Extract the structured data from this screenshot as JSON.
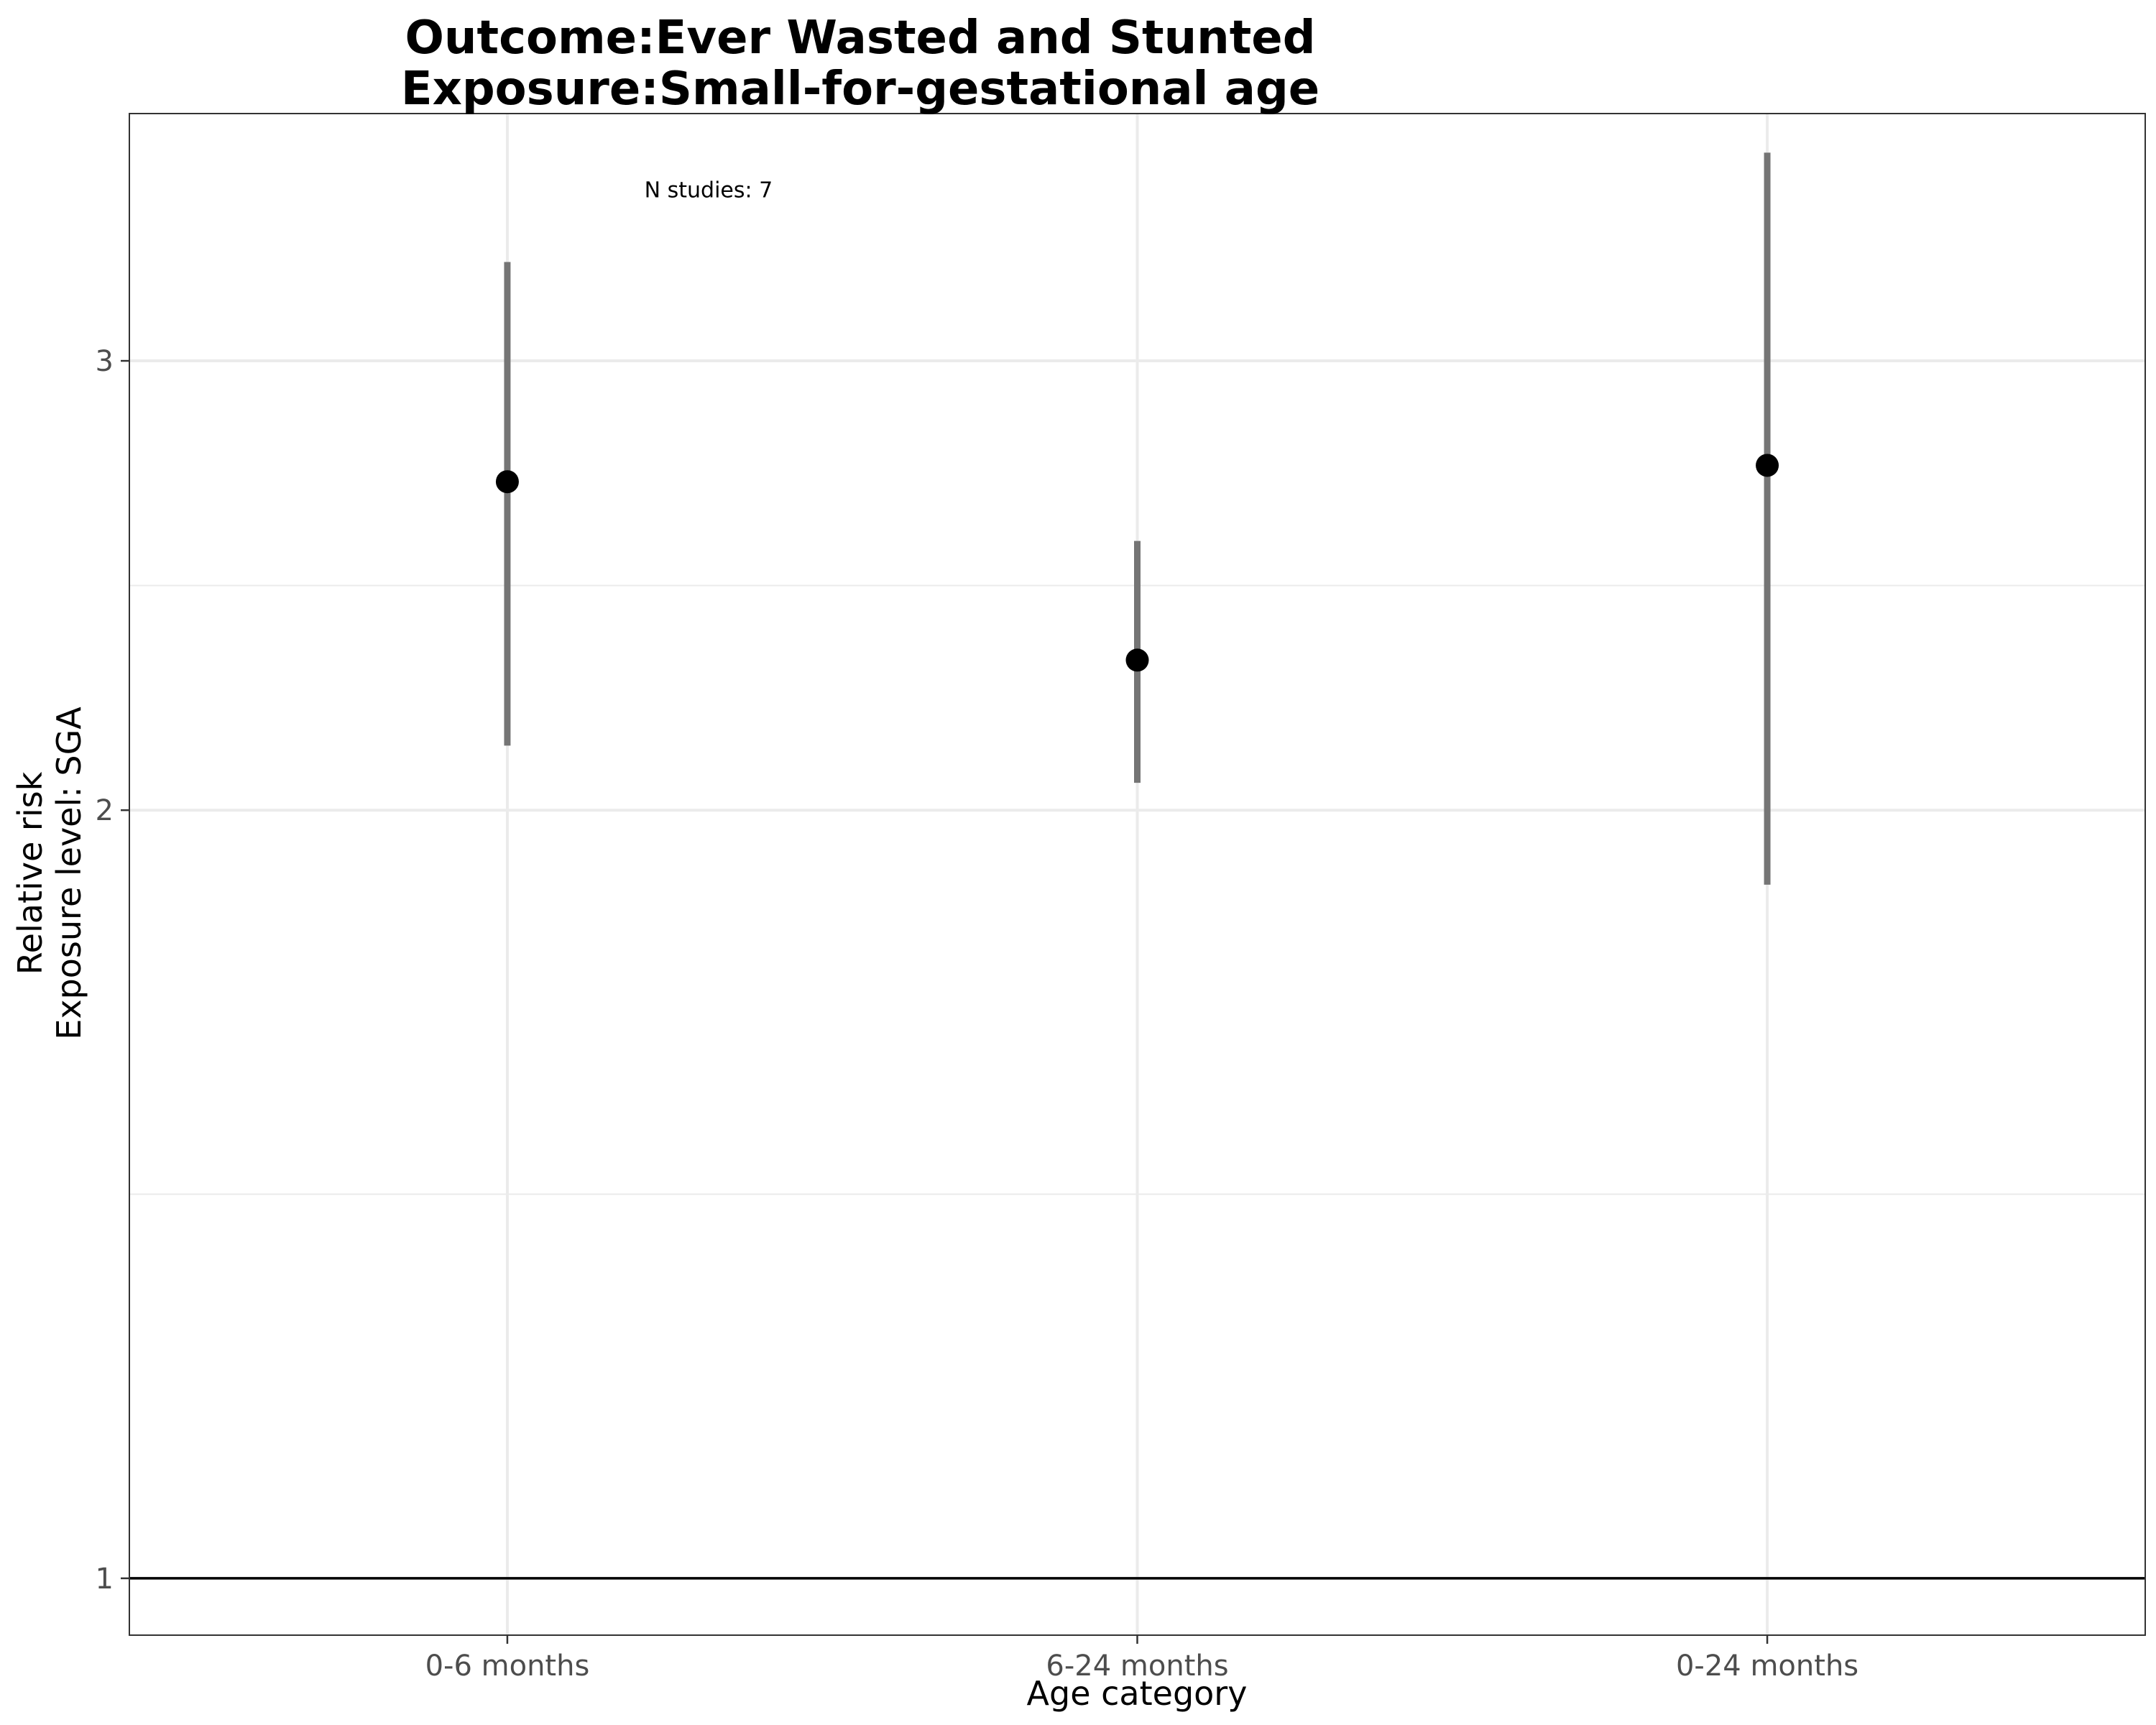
{
  "chart_data": {
    "type": "scatter",
    "title_lines": [
      "Outcome:Ever Wasted and Stunted",
      "Exposure:Small-for-gestational age"
    ],
    "xlabel": "Age category",
    "ylabel_lines": [
      "Relative risk",
      "Exposure level: SGA"
    ],
    "y_scale": "log",
    "ylim": [
      0.95,
      3.75
    ],
    "yticks": [
      1,
      2,
      3
    ],
    "categories": [
      "0-6 months",
      "6-24 months",
      "0-24 months"
    ],
    "estimates": [
      2.69,
      2.29,
      2.73
    ],
    "ci_lower": [
      2.12,
      2.05,
      1.87
    ],
    "ci_upper": [
      3.28,
      2.55,
      3.62
    ],
    "reference_line": 1,
    "annotation": {
      "text": "N studies: 7",
      "category": "0-6 months",
      "y": 3.5
    },
    "grid": true,
    "colors": {
      "point": "#000000",
      "ci": "#757575",
      "grid": "#ebebeb",
      "reference": "#000000",
      "panel_border": "#333333"
    }
  }
}
